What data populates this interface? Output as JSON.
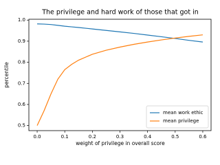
{
  "chart_data": {
    "type": "line",
    "title": "The privilege and hard work of those that got in",
    "x_label": "weight of privilege in overall score",
    "y_label": "percentile",
    "x": [
      0,
      0.025,
      0.05,
      0.075,
      0.1,
      0.125,
      0.15,
      0.2,
      0.25,
      0.3,
      0.35,
      0.4,
      0.45,
      0.5,
      0.55,
      0.6
    ],
    "series": [
      {
        "name": "mean work ethic",
        "color": "#1f77b4",
        "values": [
          0.982,
          0.981,
          0.979,
          0.975,
          0.971,
          0.968,
          0.965,
          0.958,
          0.951,
          0.944,
          0.937,
          0.929,
          0.921,
          0.913,
          0.904,
          0.896
        ]
      },
      {
        "name": "mean privilege",
        "color": "#ff7f0e",
        "values": [
          0.5,
          0.57,
          0.65,
          0.72,
          0.765,
          0.79,
          0.81,
          0.838,
          0.857,
          0.872,
          0.885,
          0.896,
          0.906,
          0.915,
          0.923,
          0.93
        ]
      }
    ],
    "xlim": [
      -0.03,
      0.63
    ],
    "ylim": [
      0.476,
      1.004
    ],
    "xticks": [
      {
        "value": 0,
        "label": "0.0"
      },
      0.1,
      0.2,
      0.3,
      0.4,
      0.5,
      0.6
    ],
    "yticks": [
      0.5,
      0.6,
      0.7,
      0.8,
      0.9,
      {
        "value": 1,
        "label": "1.0"
      }
    ],
    "legend": "lower right"
  }
}
